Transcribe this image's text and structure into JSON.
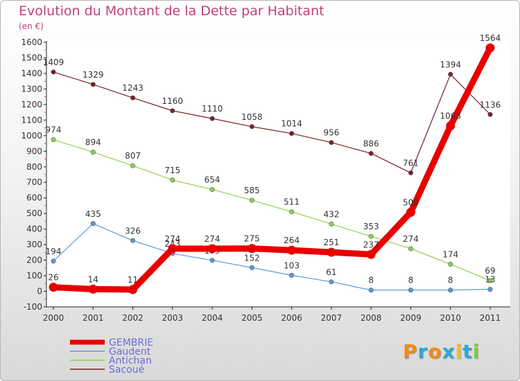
{
  "title": "Evolution du Montant de la Dette par Habitant",
  "unit": "(en €)",
  "logo": [
    "P",
    "r",
    "o",
    "x",
    "i",
    "t",
    "i"
  ],
  "logo_colors": [
    "#f08a1a",
    "#2aa7d6",
    "#f08a1a",
    "#2aa7d6",
    "#f0c020",
    "#2aa7d6",
    "#8bc34a"
  ],
  "chart_data": {
    "type": "line",
    "title": "Evolution du Montant de la Dette par Habitant",
    "ylabel": "(en €)",
    "x": [
      "2000",
      "2001",
      "2002",
      "2003",
      "2004",
      "2005",
      "2006",
      "2007",
      "2008",
      "2009",
      "2010",
      "2011"
    ],
    "ylim": [
      -100,
      1600
    ],
    "yticks": [
      -100,
      0,
      100,
      200,
      300,
      400,
      500,
      600,
      700,
      800,
      900,
      1000,
      1100,
      1200,
      1300,
      1400,
      1500,
      1600
    ],
    "grid": false,
    "legend_position": "bottom-left",
    "series": [
      {
        "name": "Sacoué",
        "color": "#7a1f24",
        "values": [
          1409,
          1329,
          1243,
          1160,
          1110,
          1058,
          1014,
          956,
          886,
          761,
          1394,
          1136
        ]
      },
      {
        "name": "Antichan",
        "color": "#8fd14f",
        "values": [
          974,
          894,
          807,
          715,
          654,
          585,
          511,
          432,
          353,
          274,
          174,
          69
        ]
      },
      {
        "name": "Gaudent",
        "color": "#5b9bd5",
        "values": [
          194,
          435,
          326,
          243,
          199,
          152,
          103,
          61,
          8,
          8,
          8,
          13
        ]
      },
      {
        "name": "GEMBRIE",
        "color": "#e80000",
        "values": [
          26,
          14,
          11,
          274,
          274,
          275,
          264,
          251,
          237,
          508,
          1063,
          1564
        ]
      }
    ],
    "legend_order": [
      "GEMBRIE",
      "Gaudent",
      "Antichan",
      "Sacoué"
    ]
  }
}
